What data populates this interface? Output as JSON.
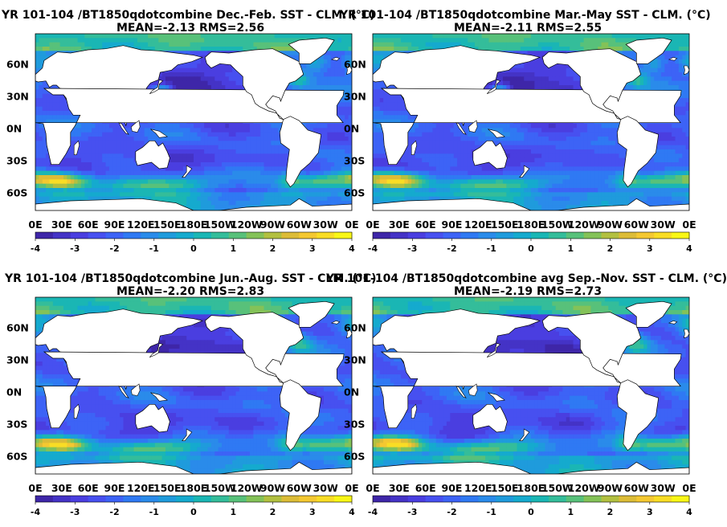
{
  "colors": {
    "ocean_colormap": [
      "#3e26a8",
      "#4433c6",
      "#4a3ee0",
      "#4750f0",
      "#3d63f6",
      "#2f79f3",
      "#2a8bea",
      "#1f9bdc",
      "#15aace",
      "#1ab6b4",
      "#34bd9a",
      "#58c17a",
      "#84c258",
      "#b2c040",
      "#dcbc37",
      "#f4c831",
      "#f9dd25",
      "#f9f716"
    ],
    "land": "#ffffff",
    "coast": "#000000"
  },
  "chart_data": [
    {
      "type": "heatmap",
      "title": "YR 101-104 /BT1850qdotcombine  Dec.-Feb. SST - CLM. (°C)",
      "subtitle": "MEAN=-2.13   RMS=2.56",
      "x_ticks": [
        "0E",
        "30E",
        "60E",
        "90E",
        "120E",
        "150E",
        "180E",
        "150W",
        "120W",
        "90W",
        "60W",
        "30W",
        "0E"
      ],
      "y_ticks": [
        "60N",
        "30N",
        "0N",
        "30S",
        "60S"
      ],
      "colorbar": {
        "range": [
          -4,
          4
        ],
        "ticks": [
          "-4",
          "-3",
          "-2",
          "-1",
          "0",
          "1",
          "2",
          "3",
          "4"
        ]
      },
      "season": "DJF"
    },
    {
      "type": "heatmap",
      "title": "YR 101-104 /BT1850qdotcombine  Mar.-May SST - CLM. (°C)",
      "subtitle": "MEAN=-2.11   RMS=2.55",
      "x_ticks": [
        "0E",
        "30E",
        "60E",
        "90E",
        "120E",
        "150E",
        "180E",
        "150W",
        "120W",
        "90W",
        "60W",
        "30W",
        "0E"
      ],
      "y_ticks": [
        "60N",
        "30N",
        "0N",
        "30S",
        "60S"
      ],
      "colorbar": {
        "range": [
          -4,
          4
        ],
        "ticks": [
          "-4",
          "-3",
          "-2",
          "-1",
          "0",
          "1",
          "2",
          "3",
          "4"
        ]
      },
      "season": "MAM"
    },
    {
      "type": "heatmap",
      "title": "YR 101-104 /BT1850qdotcombine  Jun.-Aug. SST - CLM. (°C)",
      "subtitle": "MEAN=-2.20   RMS=2.83",
      "x_ticks": [
        "0E",
        "30E",
        "60E",
        "90E",
        "120E",
        "150E",
        "180E",
        "150W",
        "120W",
        "90W",
        "60W",
        "30W",
        "0E"
      ],
      "y_ticks": [
        "60N",
        "30N",
        "0N",
        "30S",
        "60S"
      ],
      "colorbar": {
        "range": [
          -4,
          4
        ],
        "ticks": [
          "-4",
          "-3",
          "-2",
          "-1",
          "0",
          "1",
          "2",
          "3",
          "4"
        ]
      },
      "season": "JJA"
    },
    {
      "type": "heatmap",
      "title": "YR 101-104 /BT1850qdotcombine avg Sep.-Nov. SST - CLM. (°C)",
      "subtitle": "MEAN=-2.19   RMS=2.73",
      "x_ticks": [
        "0E",
        "30E",
        "60E",
        "90E",
        "120E",
        "150E",
        "180E",
        "150W",
        "120W",
        "90W",
        "60W",
        "30W",
        "0E"
      ],
      "y_ticks": [
        "60N",
        "30N",
        "0N",
        "30S",
        "60S"
      ],
      "colorbar": {
        "range": [
          -4,
          4
        ],
        "ticks": [
          "-4",
          "-3",
          "-2",
          "-1",
          "0",
          "1",
          "2",
          "3",
          "4"
        ]
      },
      "season": "SON"
    }
  ]
}
